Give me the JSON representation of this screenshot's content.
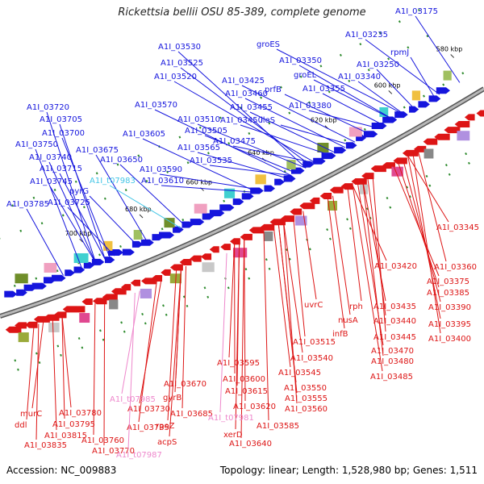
{
  "header": {
    "title": "Rickettsia bellii OSU 85-389, complete genome"
  },
  "footer": {
    "accession": "Accession: NC_009883",
    "stats": "Topology: linear; Length: 1,528,980 bp; Genes: 1,511"
  },
  "colors": {
    "forward": "#1515dd",
    "reverse": "#dd1515",
    "rna": "#ee88cc",
    "pseudo": "#44c6e6",
    "backbone": "#808080"
  },
  "ticks": [
    "580 kbp",
    "600 kbp",
    "620 kbp",
    "640 kbp",
    "660 kbp",
    "680 kbp",
    "700 kbp"
  ],
  "forward_labels": [
    "A1I_03175",
    "A1I_03235",
    "rpmJ",
    "groES",
    "A1I_03350",
    "A1I_03250",
    "groEL",
    "A1I_03340",
    "A1I_03530",
    "A1I_03525",
    "A1I_03520",
    "A1I_03425",
    "prfB",
    "A1I_03355",
    "A1I_03460",
    "A1I_03380",
    "A1I_03570",
    "A1I_03455",
    "A1I_03720",
    "A1I_03510",
    "A1I_03450",
    "ileS",
    "A1I_03705",
    "A1I_03505",
    "A1I_03700",
    "A1I_03605",
    "A1I_03475",
    "A1I_03750",
    "A1I_03675",
    "A1I_03565",
    "A1I_03740",
    "A1I_03650",
    "A1I_03535",
    "A1I_03715",
    "A1I_03590",
    "A1I_03745",
    "A1I_03610",
    "pyrG",
    "A1I_03725",
    "A1I_03785"
  ],
  "pseudo_labels": [
    "A1I_t07983"
  ],
  "reverse_labels": [
    "A1I_03345",
    "A1I_03420",
    "A1I_03360",
    "A1I_03375",
    "A1I_03385",
    "A1I_03435",
    "rph",
    "A1I_03390",
    "uvrC",
    "A1I_03440",
    "A1I_03395",
    "nusA",
    "A1I_03445",
    "A1I_03400",
    "infB",
    "A1I_03515",
    "A1I_03470",
    "A1I_03540",
    "A1I_03480",
    "A1I_03595",
    "A1I_03545",
    "A1I_03485",
    "A1I_03600",
    "A1I_03670",
    "A1I_03550",
    "A1I_03615",
    "A1I_03555",
    "A1I_03780",
    "A1I_03730",
    "gyrB",
    "A1I_03560",
    "murC",
    "A1I_03620",
    "A1I_03795",
    "A1I_03685",
    "A1I_03585",
    "ddl",
    "A1I_03815",
    "A1I_03735",
    "rpoZ",
    "xerD",
    "A1I_03760",
    "acpS",
    "A1I_03835",
    "A1I_03640",
    "A1I_03770"
  ],
  "rna_labels": [
    "A1I_t07985",
    "A1I_t07981",
    "A1I_t07987"
  ]
}
